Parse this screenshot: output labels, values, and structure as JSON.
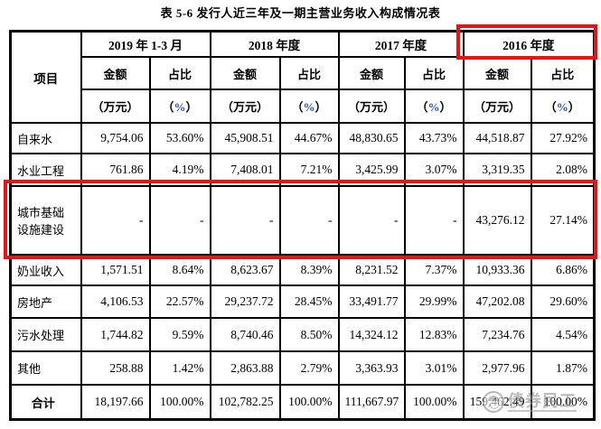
{
  "title": "表 5-6 发行人近三年及一期主营业务收入构成情况表",
  "colors": {
    "highlight_red": "#ee1111",
    "header_pct_blue": "#2b50c8",
    "watermark_gray": "#8f8f8f"
  },
  "table": {
    "item_header": "项目",
    "year_groups": [
      {
        "label": "2019 年 1-3 月",
        "highlighted": false
      },
      {
        "label": "2018 年度",
        "highlighted": false
      },
      {
        "label": "2017 年度",
        "highlighted": false
      },
      {
        "label": "2016 年度",
        "highlighted": true
      }
    ],
    "sub_headers": {
      "amount": "金额",
      "ratio": "占比",
      "amount_unit": "（万元）",
      "ratio_unit_open": "（",
      "ratio_unit_pct": "%",
      "ratio_unit_close": "）"
    },
    "rows": [
      {
        "item": "自来水",
        "key": "zilaishui",
        "highlighted": false,
        "total": false,
        "values": [
          "9,754.06",
          "53.60%",
          "45,908.51",
          "44.67%",
          "48,830.65",
          "43.73%",
          "44,518.87",
          "27.92%"
        ]
      },
      {
        "item": "水业工程",
        "key": "shuiye",
        "highlighted": false,
        "total": false,
        "values": [
          "761.86",
          "4.19%",
          "7,408.01",
          "7.21%",
          "3,425.99",
          "3.07%",
          "3,319.35",
          "2.08%"
        ]
      },
      {
        "item": "城市基础设施建设",
        "key": "chengshi",
        "highlighted": true,
        "total": false,
        "values": [
          "-",
          "-",
          "-",
          "-",
          "-",
          "-",
          "43,276.12",
          "27.14%"
        ]
      },
      {
        "item": "奶业收入",
        "key": "naiye",
        "highlighted": false,
        "total": false,
        "values": [
          "1,571.51",
          "8.64%",
          "8,623.67",
          "8.39%",
          "8,231.52",
          "7.37%",
          "10,933.36",
          "6.86%"
        ]
      },
      {
        "item": "房地产",
        "key": "fangdichan",
        "highlighted": false,
        "total": false,
        "values": [
          "4,106.53",
          "22.57%",
          "29,237.72",
          "28.45%",
          "33,491.77",
          "29.99%",
          "47,202.08",
          "29.60%"
        ]
      },
      {
        "item": "污水处理",
        "key": "wushui",
        "highlighted": false,
        "total": false,
        "values": [
          "1,744.82",
          "9.59%",
          "8,740.46",
          "8.50%",
          "14,324.12",
          "12.83%",
          "7,234.76",
          "4.54%"
        ]
      },
      {
        "item": "其他",
        "key": "qita",
        "highlighted": false,
        "total": false,
        "values": [
          "258.88",
          "1.42%",
          "2,863.88",
          "2.79%",
          "3,363.93",
          "3.01%",
          "2,977.96",
          "1.87%"
        ]
      },
      {
        "item": "合计",
        "key": "heji",
        "highlighted": false,
        "total": true,
        "values": [
          "18,197.66",
          "100.00%",
          "102,782.25",
          "100.00%",
          "111,667.97",
          "100.00%",
          "159,462.49",
          "100.00%"
        ]
      }
    ]
  },
  "watermark": {
    "text": "债券民工"
  }
}
